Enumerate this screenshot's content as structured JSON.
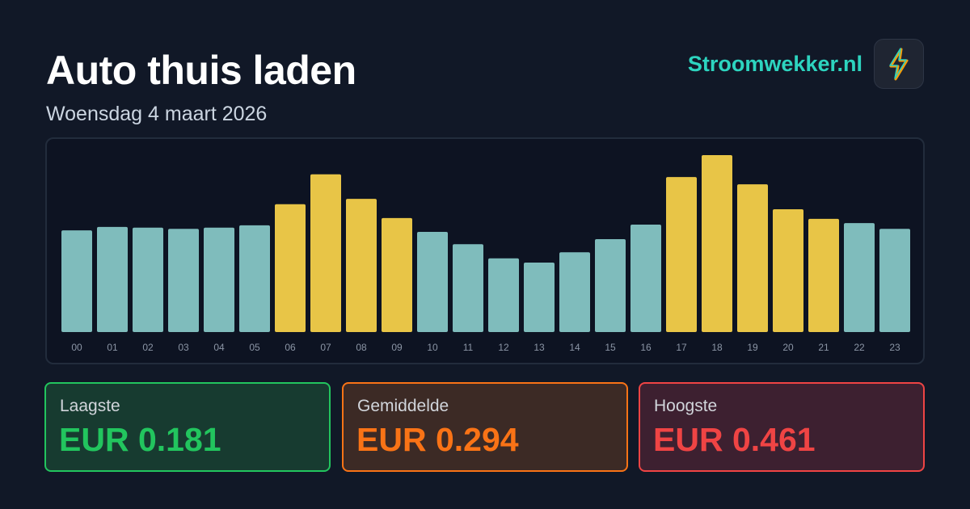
{
  "header": {
    "title": "Auto thuis laden",
    "subtitle": "Woensdag 4 maart 2026",
    "brand": "Stroomwekker.nl"
  },
  "chart_data": {
    "type": "bar",
    "categories": [
      "00",
      "01",
      "02",
      "03",
      "04",
      "05",
      "06",
      "07",
      "08",
      "09",
      "10",
      "11",
      "12",
      "13",
      "14",
      "15",
      "16",
      "17",
      "18",
      "19",
      "20",
      "21",
      "22",
      "23"
    ],
    "values": [
      0.265,
      0.274,
      0.272,
      0.269,
      0.272,
      0.278,
      0.333,
      0.411,
      0.347,
      0.297,
      0.261,
      0.229,
      0.192,
      0.181,
      0.208,
      0.242,
      0.28,
      0.404,
      0.461,
      0.385,
      0.32,
      0.295,
      0.284,
      0.269
    ],
    "colors": [
      "#7fbcbc",
      "#7fbcbc",
      "#7fbcbc",
      "#7fbcbc",
      "#7fbcbc",
      "#7fbcbc",
      "#e8c547",
      "#e8c547",
      "#e8c547",
      "#e8c547",
      "#7fbcbc",
      "#7fbcbc",
      "#7fbcbc",
      "#7fbcbc",
      "#7fbcbc",
      "#7fbcbc",
      "#7fbcbc",
      "#e8c547",
      "#e8c547",
      "#e8c547",
      "#e8c547",
      "#e8c547",
      "#7fbcbc",
      "#7fbcbc"
    ]
  },
  "stats": [
    {
      "label": "Laagste",
      "value": "EUR 0.181"
    },
    {
      "label": "Gemiddelde",
      "value": "EUR 0.294"
    },
    {
      "label": "Hoogste",
      "value": "EUR 0.461"
    }
  ]
}
